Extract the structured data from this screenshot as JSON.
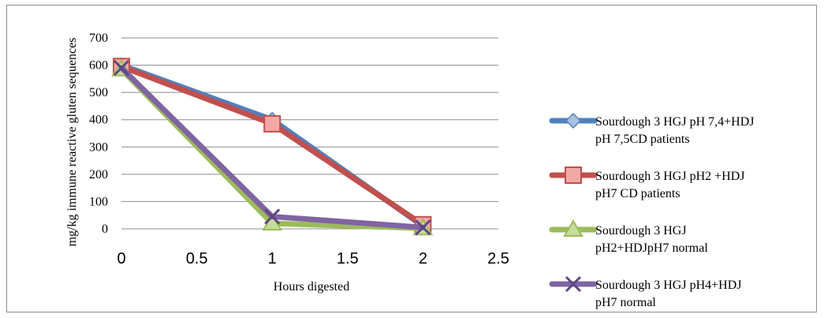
{
  "chart_data": {
    "type": "line",
    "title": "",
    "xlabel": "Hours digested",
    "ylabel": "mg/kg immune reactive gluten sequences",
    "xlim": [
      0,
      2.5
    ],
    "ylim": [
      0,
      700
    ],
    "x_ticks": [
      "0",
      "0.5",
      "1",
      "1.5",
      "2",
      "2.5"
    ],
    "y_ticks": [
      "0",
      "100",
      "200",
      "300",
      "400",
      "500",
      "600",
      "700"
    ],
    "grid": "horizontal",
    "legend_position": "right",
    "x": [
      0,
      1,
      2
    ],
    "series": [
      {
        "name": "Sourdough 3 HGJ pH 7,4+HDJ pH 7,5CD patients",
        "legend_lines": [
          "Sourdough 3 HGJ pH 7,4+HDJ",
          "pH 7,5CD patients"
        ],
        "values": [
          600,
          400,
          10
        ],
        "color": "#4f81bd",
        "marker": "diamond"
      },
      {
        "name": "Sourdough 3 HGJ pH2 +HDJ pH7 CD patients",
        "legend_lines": [
          "Sourdough 3 HGJ pH2 +HDJ",
          "pH7 CD patients"
        ],
        "values": [
          595,
          385,
          15
        ],
        "color": "#c0504d",
        "marker": "square"
      },
      {
        "name": "Sourdough 3 HGJ pH2+HDJpH7 normal",
        "legend_lines": [
          "Sourdough 3 HGJ",
          "pH2+HDJpH7 normal"
        ],
        "values": [
          585,
          20,
          2
        ],
        "color": "#9bbb59",
        "marker": "triangle"
      },
      {
        "name": "Sourdough 3 HGJ pH4+HDJ pH7 normal",
        "legend_lines": [
          "Sourdough 3 HGJ pH4+HDJ",
          "pH7 normal"
        ],
        "values": [
          590,
          45,
          5
        ],
        "color": "#8064a2",
        "marker": "x"
      }
    ]
  }
}
